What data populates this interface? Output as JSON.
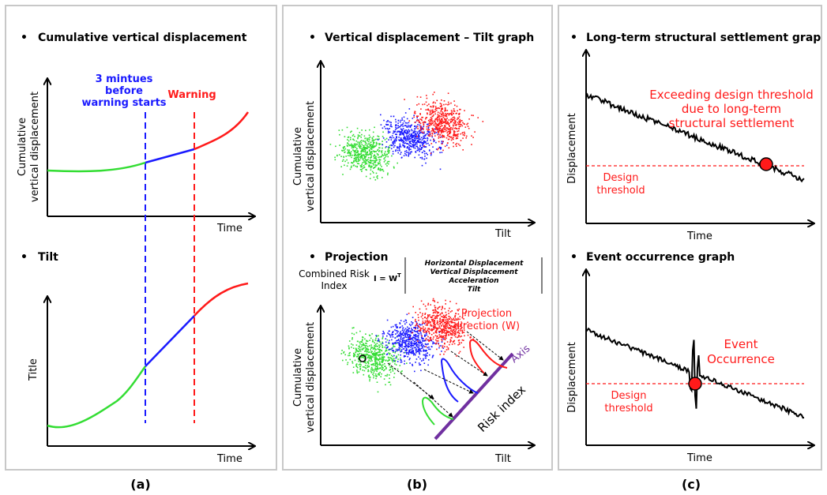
{
  "panel_a": {
    "title1": "Cumulative vertical displacement",
    "ylabel1_line1": "Cumulative",
    "ylabel1_line2": "vertical displacement",
    "xlabel1": "Time",
    "blue_note_line1": "3 mintues",
    "blue_note_line2": "before",
    "blue_note_line3": "warning starts",
    "warning": "Warning",
    "title2": "Tilt",
    "ylabel2": "Title",
    "xlabel2": "Time",
    "caption": "(a)"
  },
  "panel_b": {
    "title1": "Vertical displacement – Tilt graph",
    "ylabel1_line1": "Cumulative",
    "ylabel1_line2": "vertical displacement",
    "xlabel1": "Tilt",
    "title2": "Projection",
    "cri_line1": "Combined Risk",
    "cri_line2": "Index",
    "eq_lhs": "I = W",
    "eq_sup": "T",
    "eq_terms": [
      "Horizontal Displacement",
      "Vertical Displacement",
      "Acceleration",
      "Tilt"
    ],
    "ylabel2_line1": "Cumulative",
    "ylabel2_line2": "vertical displacement",
    "xlabel2": "Tilt",
    "proj_line1": "Projection",
    "proj_line2": "direction (W)",
    "axis_label": "Axis",
    "risk_index": "Risk index",
    "caption": "(b)"
  },
  "panel_c": {
    "title1": "Long-term structural settlement graph",
    "ylabel1": "Displacement",
    "xlabel1": "Time",
    "note1_line1": "Exceeding design threshold",
    "note1_line2": "due to long-term",
    "note1_line3": "structural settlement",
    "thr1_line1": "Design",
    "thr1_line2": "threshold",
    "title2": "Event occurrence graph",
    "ylabel2": "Displacement",
    "xlabel2": "Time",
    "event_line1": "Event",
    "event_line2": "Occurrence",
    "thr2_line1": "Design",
    "thr2_line2": "threshold",
    "caption": "(c)"
  },
  "colors": {
    "green": "#33dd33",
    "blue": "#1a1aff",
    "red": "#ff1a1a",
    "purple": "#7030a0",
    "border": "#c8c8c8"
  }
}
